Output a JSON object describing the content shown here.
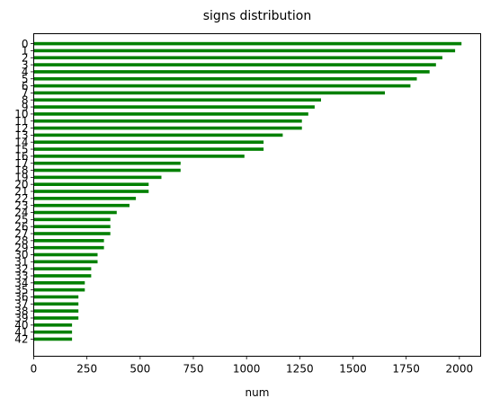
{
  "chart_data": {
    "type": "bar",
    "orientation": "horizontal",
    "title": "signs distribution",
    "xlabel": "num",
    "ylabel": "",
    "xlim": [
      0,
      2100
    ],
    "x_ticks": [
      0,
      250,
      500,
      750,
      1000,
      1250,
      1500,
      1750,
      2000
    ],
    "bar_color": "#008000",
    "grid": false,
    "categories": [
      "0",
      "1",
      "2",
      "3",
      "4",
      "5",
      "6",
      "7",
      "8",
      "9",
      "10",
      "11",
      "12",
      "13",
      "14",
      "15",
      "16",
      "17",
      "18",
      "19",
      "20",
      "21",
      "22",
      "23",
      "24",
      "25",
      "26",
      "27",
      "28",
      "29",
      "30",
      "31",
      "32",
      "33",
      "34",
      "35",
      "36",
      "37",
      "38",
      "39",
      "40",
      "41",
      "42"
    ],
    "values": [
      2010,
      1980,
      1920,
      1890,
      1860,
      1800,
      1770,
      1650,
      1350,
      1320,
      1290,
      1260,
      1260,
      1170,
      1080,
      1080,
      990,
      690,
      690,
      600,
      540,
      540,
      480,
      450,
      390,
      360,
      360,
      360,
      330,
      330,
      300,
      300,
      270,
      270,
      240,
      240,
      210,
      210,
      210,
      210,
      180,
      180,
      180
    ]
  }
}
